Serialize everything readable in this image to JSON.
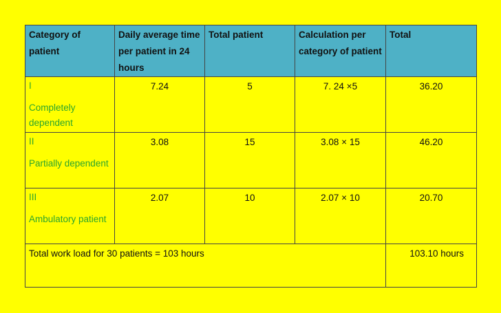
{
  "headers": [
    "Category of patient",
    "Daily average time per patient in 24 hours",
    "Total patient",
    "Calculation per category of patient",
    "Total"
  ],
  "rows": [
    {
      "roman": "I",
      "label": " Completely dependent",
      "avg_time": "7.24",
      "patients": "5",
      "calculation": "7. 24 ×5",
      "total": "36.20"
    },
    {
      "roman": "II",
      "label": "Partially dependent",
      "avg_time": "3.08",
      "patients": "15",
      "calculation": "3.08 × 15",
      "total": "46.20"
    },
    {
      "roman": "III",
      "label": "Ambulatory patient",
      "avg_time": "2.07",
      "patients": "10",
      "calculation": "2.07 × 10",
      "total": "20.70"
    }
  ],
  "summary": {
    "text": "Total work load for 30 patients = 103 hours",
    "total": "103.10 hours"
  }
}
